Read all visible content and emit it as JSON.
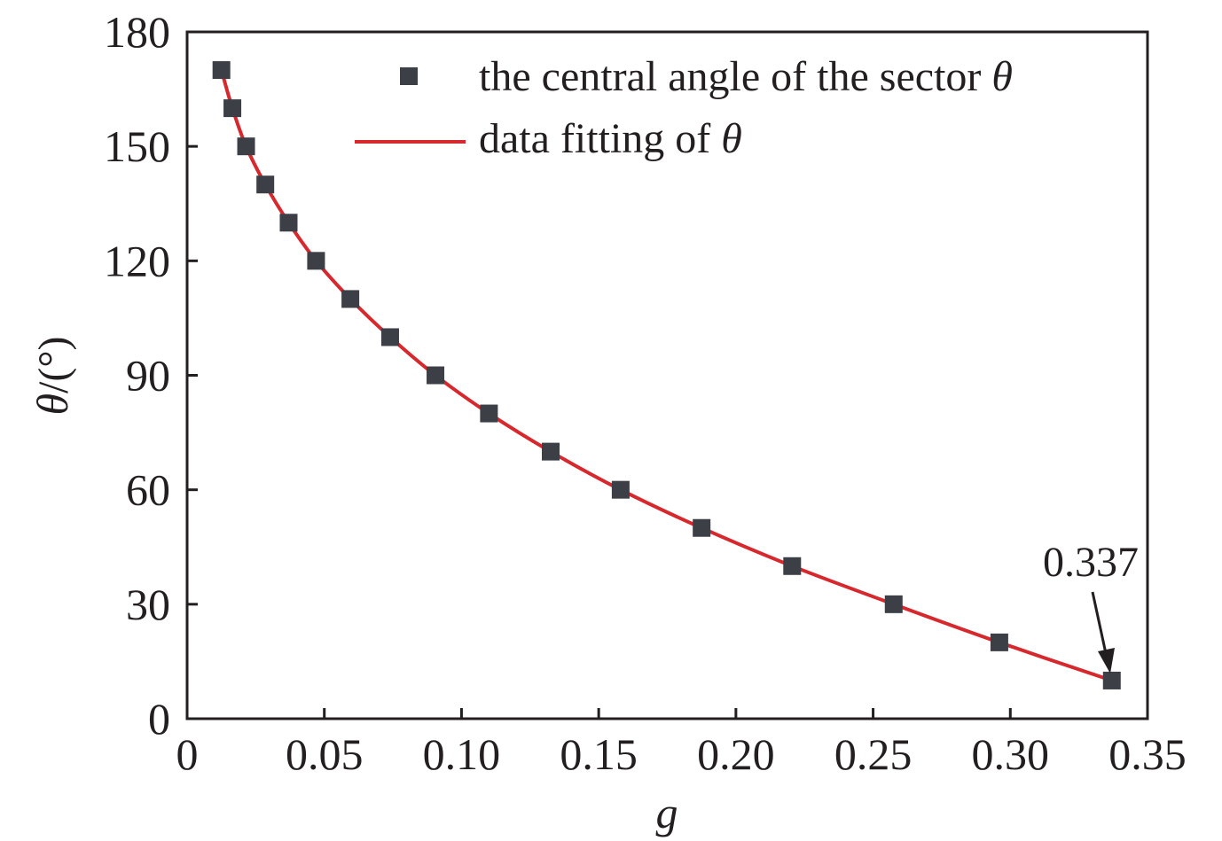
{
  "chart_data": {
    "type": "scatter",
    "xlabel": "g",
    "ylabel_var": "θ",
    "ylabel_unit": "/(°)",
    "xlim": [
      0,
      0.35
    ],
    "ylim": [
      0,
      180
    ],
    "x_ticks": [
      0,
      0.05,
      0.1,
      0.15,
      0.2,
      0.25,
      0.3,
      0.35
    ],
    "x_tick_labels": [
      "0",
      "0.05",
      "0.10",
      "0.15",
      "0.20",
      "0.25",
      "0.30",
      "0.35"
    ],
    "y_ticks": [
      0,
      30,
      60,
      90,
      120,
      150,
      180
    ],
    "y_tick_labels": [
      "0",
      "30",
      "60",
      "90",
      "120",
      "150",
      "180"
    ],
    "grid": false,
    "legend_position": "top-right",
    "series": [
      {
        "name_prefix": "the central angle of the sector ",
        "name_symbol": "θ",
        "kind": "markers",
        "marker": "square",
        "color": "#3d3f47",
        "x": [
          0.0125,
          0.0165,
          0.0215,
          0.0285,
          0.037,
          0.047,
          0.0595,
          0.074,
          0.0905,
          0.11,
          0.1325,
          0.158,
          0.1875,
          0.2205,
          0.2575,
          0.296,
          0.337
        ],
        "y": [
          170,
          160,
          150,
          140,
          130,
          120,
          110,
          100,
          90,
          80,
          70,
          60,
          50,
          40,
          30,
          20,
          10
        ]
      },
      {
        "name_prefix": "data fitting of ",
        "name_symbol": "θ",
        "kind": "line",
        "color": "#d7282e",
        "x": [
          0.0125,
          0.0165,
          0.0215,
          0.0285,
          0.037,
          0.047,
          0.0595,
          0.074,
          0.0905,
          0.11,
          0.1325,
          0.158,
          0.1875,
          0.2205,
          0.2575,
          0.296,
          0.337
        ],
        "y": [
          170,
          160,
          150,
          140,
          130,
          120,
          110,
          100,
          90,
          80,
          70,
          60,
          50,
          40,
          30,
          20,
          10
        ]
      }
    ],
    "annotations": [
      {
        "text": "0.337",
        "target_x": 0.337,
        "target_y": 10
      }
    ]
  }
}
